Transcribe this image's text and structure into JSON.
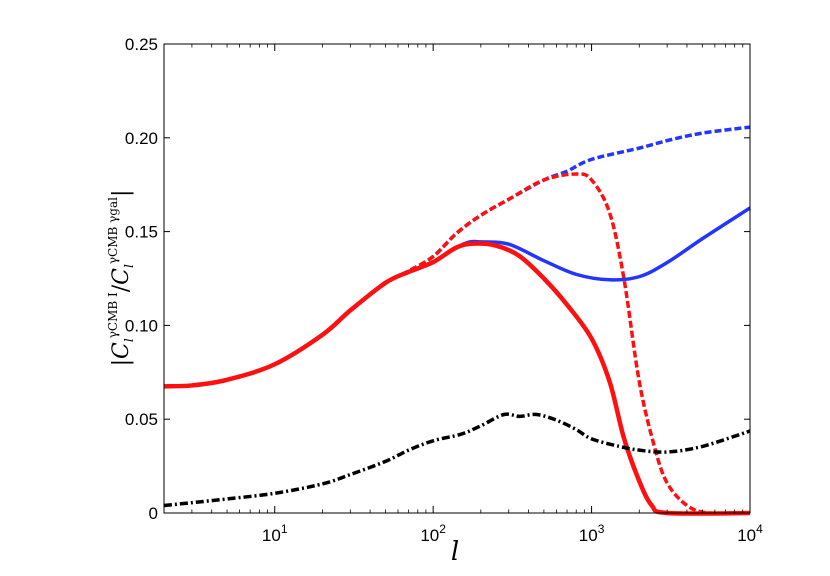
{
  "chart_data": {
    "type": "line",
    "xscale": "log",
    "xlim": [
      2,
      10000
    ],
    "ylim": [
      0,
      0.25
    ],
    "xlabel": "l",
    "ylabel": {
      "bar_open": "|",
      "c1": "C",
      "c1_sub": "l",
      "c1_sup": "γCMB I",
      "slash": "/",
      "c2": "C",
      "c2_sub": "l",
      "c2_sup": "γCMB γgal",
      "bar_close": "|"
    },
    "xticks": [
      {
        "value": 10,
        "base": "10",
        "exp": "1"
      },
      {
        "value": 100,
        "base": "10",
        "exp": "2"
      },
      {
        "value": 1000,
        "base": "10",
        "exp": "3"
      },
      {
        "value": 10000,
        "base": "10",
        "exp": "4"
      }
    ],
    "yticks": [
      {
        "value": 0,
        "label": "0"
      },
      {
        "value": 0.05,
        "label": "0.05"
      },
      {
        "value": 0.1,
        "label": "0.10"
      },
      {
        "value": 0.15,
        "label": "0.15"
      },
      {
        "value": 0.2,
        "label": "0.20"
      },
      {
        "value": 0.25,
        "label": "0.25"
      }
    ],
    "grid": false,
    "series": [
      {
        "color": "#2236ff",
        "style": "dashed",
        "width": 3.5,
        "points": [
          [
            2,
            0.0675
          ],
          [
            3,
            0.068
          ],
          [
            5,
            0.071
          ],
          [
            10,
            0.0793
          ],
          [
            20,
            0.095
          ],
          [
            30,
            0.108
          ],
          [
            50,
            0.1227
          ],
          [
            70,
            0.129
          ],
          [
            100,
            0.1367
          ],
          [
            140,
            0.149
          ],
          [
            200,
            0.1587
          ],
          [
            300,
            0.1672
          ],
          [
            500,
            0.1775
          ],
          [
            700,
            0.1822
          ],
          [
            1000,
            0.1885
          ],
          [
            2000,
            0.1945
          ],
          [
            3000,
            0.1985
          ],
          [
            5000,
            0.2025
          ],
          [
            10000,
            0.2057
          ]
        ]
      },
      {
        "color": "#ff1010",
        "style": "dashed",
        "width": 3.5,
        "points": [
          [
            2,
            0.0675
          ],
          [
            3,
            0.068
          ],
          [
            5,
            0.071
          ],
          [
            10,
            0.0793
          ],
          [
            20,
            0.095
          ],
          [
            30,
            0.108
          ],
          [
            50,
            0.1227
          ],
          [
            70,
            0.129
          ],
          [
            100,
            0.1367
          ],
          [
            140,
            0.149
          ],
          [
            200,
            0.1587
          ],
          [
            300,
            0.1672
          ],
          [
            500,
            0.1775
          ],
          [
            800,
            0.1807
          ],
          [
            1000,
            0.1775
          ],
          [
            1300,
            0.16
          ],
          [
            1600,
            0.125
          ],
          [
            2000,
            0.07
          ],
          [
            2500,
            0.035
          ],
          [
            3000,
            0.016
          ],
          [
            4000,
            0.004
          ],
          [
            5500,
            0.0
          ],
          [
            10000,
            0.0
          ]
        ]
      },
      {
        "color": "#2236ff",
        "style": "solid",
        "width": 3.5,
        "points": [
          [
            2,
            0.0675
          ],
          [
            3,
            0.068
          ],
          [
            5,
            0.071
          ],
          [
            10,
            0.0793
          ],
          [
            20,
            0.095
          ],
          [
            30,
            0.108
          ],
          [
            50,
            0.1227
          ],
          [
            70,
            0.1285
          ],
          [
            100,
            0.1337
          ],
          [
            140,
            0.1415
          ],
          [
            170,
            0.1445
          ],
          [
            200,
            0.1445
          ],
          [
            300,
            0.1433
          ],
          [
            500,
            0.1345
          ],
          [
            800,
            0.1272
          ],
          [
            1300,
            0.1243
          ],
          [
            2000,
            0.126
          ],
          [
            3000,
            0.1335
          ],
          [
            5000,
            0.1462
          ],
          [
            10000,
            0.1626
          ]
        ]
      },
      {
        "color": "#ff1010",
        "style": "solid",
        "width": 4.5,
        "points": [
          [
            2,
            0.0675
          ],
          [
            3,
            0.068
          ],
          [
            5,
            0.071
          ],
          [
            10,
            0.0793
          ],
          [
            20,
            0.095
          ],
          [
            30,
            0.108
          ],
          [
            50,
            0.1227
          ],
          [
            70,
            0.1285
          ],
          [
            100,
            0.1337
          ],
          [
            140,
            0.1415
          ],
          [
            180,
            0.1436
          ],
          [
            250,
            0.1425
          ],
          [
            350,
            0.137
          ],
          [
            500,
            0.125
          ],
          [
            700,
            0.111
          ],
          [
            1000,
            0.093
          ],
          [
            1300,
            0.07
          ],
          [
            1600,
            0.04
          ],
          [
            2000,
            0.017
          ],
          [
            2400,
            0.004
          ],
          [
            3000,
            0.0
          ],
          [
            10000,
            0.0
          ]
        ]
      },
      {
        "color": "#000000",
        "style": "dashdot",
        "width": 3.5,
        "points": [
          [
            2,
            0.004
          ],
          [
            3,
            0.0055
          ],
          [
            5,
            0.0075
          ],
          [
            10,
            0.0105
          ],
          [
            20,
            0.0155
          ],
          [
            30,
            0.0205
          ],
          [
            50,
            0.0275
          ],
          [
            70,
            0.0335
          ],
          [
            100,
            0.0385
          ],
          [
            150,
            0.042
          ],
          [
            200,
            0.0465
          ],
          [
            280,
            0.0525
          ],
          [
            350,
            0.0515
          ],
          [
            450,
            0.0525
          ],
          [
            600,
            0.0495
          ],
          [
            800,
            0.0445
          ],
          [
            1000,
            0.0395
          ],
          [
            1500,
            0.0355
          ],
          [
            2000,
            0.0335
          ],
          [
            3000,
            0.0325
          ],
          [
            5000,
            0.0355
          ],
          [
            10000,
            0.0437
          ]
        ]
      }
    ]
  }
}
